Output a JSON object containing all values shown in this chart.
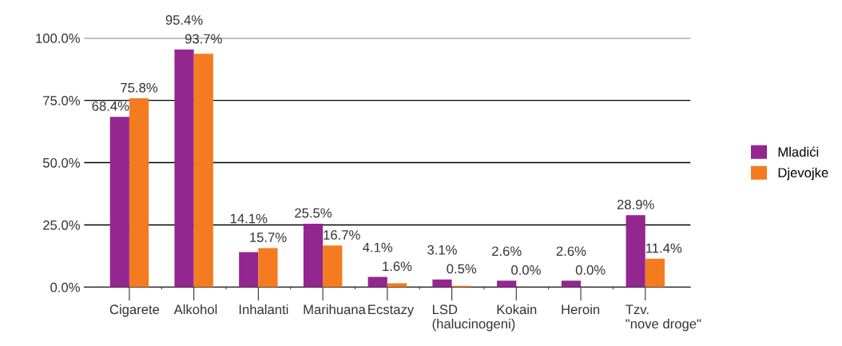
{
  "chart_data": {
    "type": "bar",
    "categories": [
      "Cigarete",
      "Alkohol",
      "Inhalanti",
      "Marihuana",
      "Ecstazy",
      "LSD\n(halucinogeni)",
      "Kokain",
      "Heroin",
      "Tzv.\n\"nove droge\""
    ],
    "series": [
      {
        "name": "Mladići",
        "color": "#93268f",
        "values": [
          68.4,
          95.4,
          14.1,
          25.5,
          4.1,
          3.1,
          2.6,
          2.6,
          28.9
        ],
        "value_labels": [
          "68.4%",
          "95.4%",
          "14.1%",
          "25.5%",
          "4.1%",
          "3.1%",
          "2.6%",
          "2.6%",
          "28.9%"
        ]
      },
      {
        "name": "Djevojke",
        "color": "#f47b20",
        "values": [
          75.8,
          93.7,
          15.7,
          16.7,
          1.6,
          0.5,
          0.0,
          0.0,
          11.4
        ],
        "value_labels": [
          "75.8%",
          "93.7%",
          "15.7%",
          "16.7%",
          "1.6%",
          "0.5%",
          "0.0%",
          "0.0%",
          "11.4%"
        ]
      }
    ],
    "ylim": [
      0,
      100
    ],
    "yticks": [
      {
        "value": 0,
        "label": "0.0%"
      },
      {
        "value": 25,
        "label": "25.0%"
      },
      {
        "value": 50,
        "label": "50.0%"
      },
      {
        "value": 75,
        "label": "75.0%"
      },
      {
        "value": 100,
        "label": "100.0%"
      }
    ],
    "grid": "y",
    "legend": "right"
  }
}
